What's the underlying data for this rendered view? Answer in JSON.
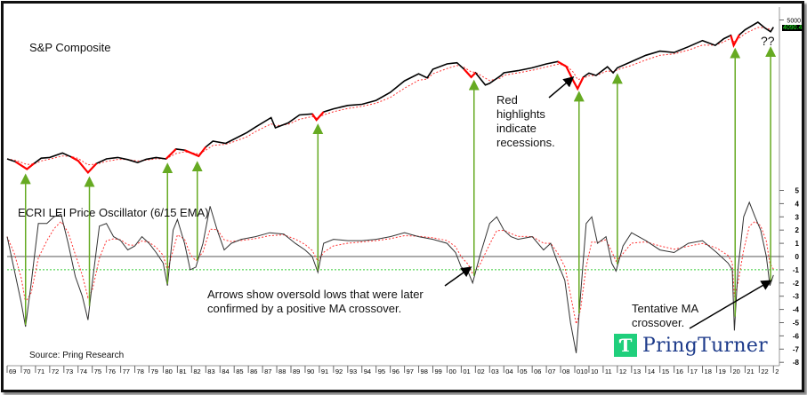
{
  "chart_data": [
    {
      "type": "line",
      "title": "S&P Composite",
      "scale": "log",
      "yticks": [
        "5000"
      ],
      "last_value_label": "4090.4",
      "series": [
        {
          "name": "S&P Composite",
          "color": "#000000",
          "points": [
            [
              1969,
              100
            ],
            [
              1969.6,
              92
            ],
            [
              1970.4,
              75
            ],
            [
              1970.9,
              88
            ],
            [
              1971.4,
              102
            ],
            [
              1972,
              104
            ],
            [
              1972.9,
              118
            ],
            [
              1973.5,
              106
            ],
            [
              1974,
              95
            ],
            [
              1974.7,
              68
            ],
            [
              1975.3,
              88
            ],
            [
              1976,
              100
            ],
            [
              1976.8,
              104
            ],
            [
              1977.5,
              98
            ],
            [
              1978.2,
              90
            ],
            [
              1978.8,
              99
            ],
            [
              1979.5,
              104
            ],
            [
              1980.2,
              100
            ],
            [
              1980.9,
              132
            ],
            [
              1981.5,
              128
            ],
            [
              1982.5,
              108
            ],
            [
              1983,
              140
            ],
            [
              1983.5,
              165
            ],
            [
              1984.4,
              155
            ],
            [
              1985,
              175
            ],
            [
              1985.9,
              210
            ],
            [
              1986.5,
              245
            ],
            [
              1987.6,
              320
            ],
            [
              1987.9,
              240
            ],
            [
              1988.8,
              275
            ],
            [
              1989.6,
              345
            ],
            [
              1990.5,
              355
            ],
            [
              1990.8,
              300
            ],
            [
              1991.3,
              375
            ],
            [
              1992,
              410
            ],
            [
              1993,
              450
            ],
            [
              1994,
              465
            ],
            [
              1995,
              520
            ],
            [
              1996,
              650
            ],
            [
              1997,
              900
            ],
            [
              1998,
              1100
            ],
            [
              1998.6,
              980
            ],
            [
              1999,
              1250
            ],
            [
              2000,
              1450
            ],
            [
              2000.7,
              1500
            ],
            [
              2001.2,
              1250
            ],
            [
              2001.7,
              1000
            ],
            [
              2002,
              1130
            ],
            [
              2002.7,
              800
            ],
            [
              2003,
              840
            ],
            [
              2003.8,
              1050
            ],
            [
              2004,
              1130
            ],
            [
              2005,
              1200
            ],
            [
              2006,
              1300
            ],
            [
              2007,
              1450
            ],
            [
              2007.8,
              1550
            ],
            [
              2008.4,
              1350
            ],
            [
              2008.9,
              900
            ],
            [
              2009.2,
              720
            ],
            [
              2009.6,
              1000
            ],
            [
              2010,
              1120
            ],
            [
              2010.5,
              1050
            ],
            [
              2011.3,
              1340
            ],
            [
              2011.7,
              1130
            ],
            [
              2012,
              1300
            ],
            [
              2013,
              1550
            ],
            [
              2014,
              1850
            ],
            [
              2015,
              2080
            ],
            [
              2016,
              2000
            ],
            [
              2017,
              2350
            ],
            [
              2018,
              2800
            ],
            [
              2018.9,
              2450
            ],
            [
              2019.5,
              2950
            ],
            [
              2020,
              3250
            ],
            [
              2020.2,
              2450
            ],
            [
              2020.6,
              3300
            ],
            [
              2021,
              3800
            ],
            [
              2021.9,
              4700
            ],
            [
              2022.4,
              4000
            ],
            [
              2022.8,
              3600
            ],
            [
              2023,
              4090
            ]
          ]
        }
      ],
      "recessions": [
        [
          1969.9,
          1970.9
        ],
        [
          1973.9,
          1975.2
        ],
        [
          1980,
          1980.5
        ],
        [
          1981.5,
          1982.9
        ],
        [
          1990.5,
          1991.2
        ],
        [
          2001.2,
          2001.9
        ],
        [
          2007.9,
          2009.5
        ],
        [
          2020.1,
          2020.4
        ]
      ],
      "ma_color": "#ff3333",
      "recession_color": "#ff0000"
    },
    {
      "type": "line",
      "title": "ECRI LEI Price Oscillator (6/15 EMA)",
      "ylim": [
        -8,
        5
      ],
      "yticks": [
        "5",
        "4",
        "3",
        "2",
        "1",
        "0",
        "-1",
        "-2",
        "-3",
        "-4",
        "-5",
        "-6",
        "-7",
        "-8"
      ],
      "reference_lines": [
        {
          "value": 0,
          "color": "#555555"
        },
        {
          "value": -1,
          "color": "#33cc33"
        }
      ],
      "series": [
        {
          "name": "Oscillator",
          "color": "#333333",
          "points": [
            [
              1969,
              1.5
            ],
            [
              1969.5,
              -1
            ],
            [
              1970,
              -3.5
            ],
            [
              1970.3,
              -5.3
            ],
            [
              1970.7,
              -2
            ],
            [
              1971.2,
              2.5
            ],
            [
              1971.8,
              2.5
            ],
            [
              1972.3,
              3
            ],
            [
              1972.8,
              3.2
            ],
            [
              1973.3,
              1
            ],
            [
              1973.8,
              -1.5
            ],
            [
              1974.3,
              -3
            ],
            [
              1974.7,
              -4.8
            ],
            [
              1975,
              -2
            ],
            [
              1975.5,
              2.3
            ],
            [
              1976,
              2.5
            ],
            [
              1976.5,
              1.5
            ],
            [
              1977,
              1.2
            ],
            [
              1977.5,
              0.5
            ],
            [
              1978,
              0.8
            ],
            [
              1978.5,
              1.5
            ],
            [
              1979,
              1
            ],
            [
              1979.5,
              0.3
            ],
            [
              1980,
              -0.5
            ],
            [
              1980.3,
              -2.2
            ],
            [
              1980.7,
              2
            ],
            [
              1981,
              2.8
            ],
            [
              1981.5,
              1
            ],
            [
              1981.9,
              -1
            ],
            [
              1982.3,
              -0.8
            ],
            [
              1982.8,
              1
            ],
            [
              1983.3,
              3.8
            ],
            [
              1983.8,
              2
            ],
            [
              1984.3,
              0.5
            ],
            [
              1984.8,
              1
            ],
            [
              1985.5,
              1.3
            ],
            [
              1986.5,
              1.5
            ],
            [
              1987.5,
              1.8
            ],
            [
              1988.5,
              1.7
            ],
            [
              1989.3,
              1
            ],
            [
              1990,
              0.5
            ],
            [
              1990.5,
              0
            ],
            [
              1990.9,
              -1.2
            ],
            [
              1991.3,
              1
            ],
            [
              1992,
              1.3
            ],
            [
              1993,
              1.2
            ],
            [
              1994,
              1.2
            ],
            [
              1995,
              1.3
            ],
            [
              1996,
              1.5
            ],
            [
              1997,
              1.8
            ],
            [
              1998,
              1.5
            ],
            [
              1999,
              1.3
            ],
            [
              2000,
              1
            ],
            [
              2000.6,
              0.3
            ],
            [
              2001,
              -0.8
            ],
            [
              2001.5,
              -1.2
            ],
            [
              2001.8,
              -2
            ],
            [
              2002.3,
              0
            ],
            [
              2003,
              2.5
            ],
            [
              2003.5,
              3
            ],
            [
              2004,
              2
            ],
            [
              2004.5,
              1.5
            ],
            [
              2005,
              1.3
            ],
            [
              2006,
              1.5
            ],
            [
              2006.8,
              0.5
            ],
            [
              2007.3,
              1
            ],
            [
              2007.8,
              -0.5
            ],
            [
              2008.3,
              -1.8
            ],
            [
              2008.7,
              -5
            ],
            [
              2009.1,
              -7.3
            ],
            [
              2009.4,
              -3
            ],
            [
              2009.8,
              2.5
            ],
            [
              2010.2,
              3
            ],
            [
              2010.6,
              1
            ],
            [
              2011.2,
              1.5
            ],
            [
              2011.6,
              -0.5
            ],
            [
              2011.9,
              -1.1
            ],
            [
              2012.4,
              0.8
            ],
            [
              2013,
              1.8
            ],
            [
              2014,
              1.2
            ],
            [
              2015,
              0.5
            ],
            [
              2016,
              0.3
            ],
            [
              2017,
              1
            ],
            [
              2018,
              1.2
            ],
            [
              2019,
              0.3
            ],
            [
              2019.8,
              -0.5
            ],
            [
              2020.1,
              -1
            ],
            [
              2020.25,
              -5.6
            ],
            [
              2020.5,
              -1
            ],
            [
              2020.9,
              3
            ],
            [
              2021.3,
              4.1
            ],
            [
              2021.7,
              3
            ],
            [
              2022.1,
              2
            ],
            [
              2022.5,
              0
            ],
            [
              2022.75,
              -2.2
            ],
            [
              2023,
              -1.4
            ]
          ]
        }
      ],
      "ma_color": "#ff3333"
    }
  ],
  "x_tick_labels": [
    "69",
    "70",
    "71",
    "72",
    "73",
    "74",
    "75",
    "76",
    "77",
    "78",
    "79",
    "80",
    "81",
    "82",
    "83",
    "84",
    "85",
    "86",
    "87",
    "88",
    "89",
    "90",
    "91",
    "92",
    "93",
    "94",
    "95",
    "96",
    "97",
    "98",
    "99",
    "00",
    "01",
    "02",
    "03",
    "04",
    "05",
    "06",
    "07",
    "08",
    "010",
    "10",
    "11",
    "12",
    "13",
    "14",
    "15",
    "16",
    "17",
    "18",
    "19",
    "20",
    "21",
    "22",
    "2"
  ],
  "signal_arrows": {
    "color": "#66aa22",
    "years": [
      1970.3,
      1974.8,
      1980.3,
      1982.4,
      1990.9,
      2001.9,
      2009.3,
      2012,
      2020.3,
      2022.8
    ]
  },
  "annotations": {
    "recessions_note": "Red highlights indicate recessions.",
    "arrows_note": "Arrows show oversold lows that were later confirmed by a positive MA crossover.",
    "tentative_note": "Tentative MA crossover.",
    "question": "??",
    "source": "Source: Pring Research"
  },
  "logo": {
    "text": "PringTurner",
    "mark": "T"
  }
}
